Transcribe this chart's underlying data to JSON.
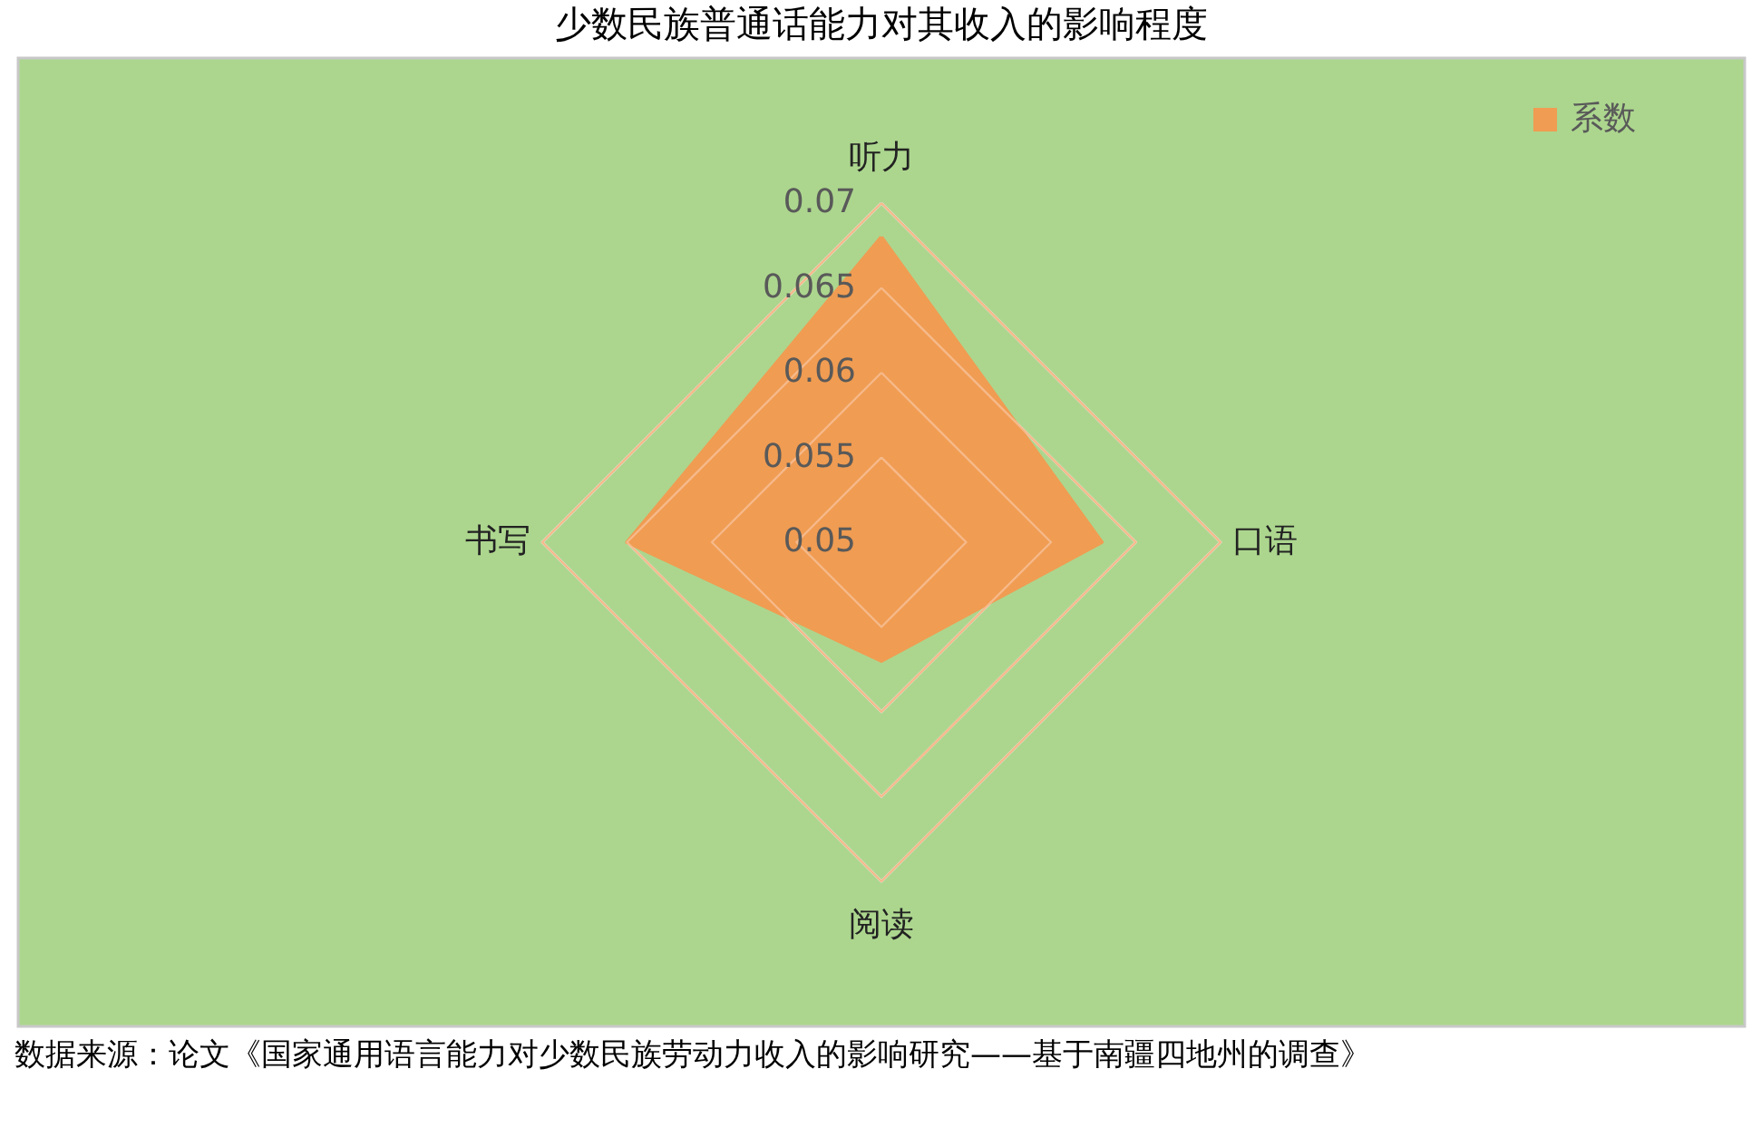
{
  "chart_data": {
    "type": "radar",
    "title": "少数民族普通话能力对其收入的影响程度",
    "categories": [
      "听力",
      "口语",
      "阅读",
      "书写"
    ],
    "series": [
      {
        "name": "系数",
        "color": "#f09c52",
        "values": [
          0.068,
          0.063,
          0.057,
          0.065
        ]
      }
    ],
    "ylim": [
      0.05,
      0.07
    ],
    "yticks": [
      0.05,
      0.055,
      0.06,
      0.065,
      0.07
    ],
    "grid": true,
    "legend": "top right",
    "annotations": [
      "数据来源：论文《国家通用语言能力对少数民族劳动力收入的影响研究——基于南疆四地州的调查》"
    ]
  }
}
